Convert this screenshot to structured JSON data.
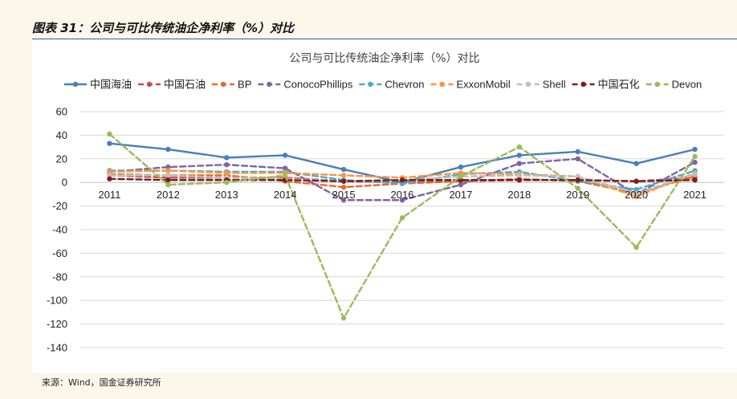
{
  "page": {
    "caption": "图表 31：公司与可比传统油企净利率（%）对比",
    "source": "来源：Wind，国金证券研究所"
  },
  "chart_data": {
    "type": "line",
    "title": "公司与可比传统油企净利率（%）对比",
    "legend_position": "top",
    "grid": "horizontal",
    "x": [
      "2011",
      "2012",
      "2013",
      "2014",
      "2015",
      "2016",
      "2017",
      "2018",
      "2019",
      "2020",
      "2021"
    ],
    "ylim": [
      -140,
      60
    ],
    "yticks": [
      60,
      40,
      20,
      0,
      -20,
      -40,
      -60,
      -80,
      -100,
      -120,
      -140
    ],
    "xlabel": "",
    "ylabel": "",
    "series": [
      {
        "name": "中国海油",
        "color": "#4a7ebb",
        "style": "solid",
        "values": [
          33,
          28,
          21,
          23,
          11,
          0,
          13,
          23,
          26,
          16,
          28
        ]
      },
      {
        "name": "中国石油",
        "color": "#c0504d",
        "style": "dashed",
        "values": [
          6,
          4,
          4,
          4,
          1,
          0,
          1,
          2,
          2,
          1,
          4
        ]
      },
      {
        "name": "BP",
        "color": "#e46c2a",
        "style": "dashed",
        "values": [
          7,
          6,
          6,
          1,
          -4,
          -1,
          1,
          3,
          1,
          -9,
          5
        ]
      },
      {
        "name": "ConocoPhillips",
        "color": "#7f62a6",
        "style": "dashed",
        "values": [
          9,
          13,
          15,
          12,
          -15,
          -15,
          -2,
          16,
          20,
          -10,
          17
        ]
      },
      {
        "name": "Chevron",
        "color": "#4bacc6",
        "style": "dashed",
        "values": [
          10,
          10,
          9,
          9,
          2,
          -1,
          7,
          9,
          1,
          -6,
          10
        ]
      },
      {
        "name": "ExxonMobil",
        "color": "#f79646",
        "style": "dashed",
        "values": [
          9,
          10,
          8,
          8,
          6,
          4,
          8,
          7,
          5,
          -12,
          8
        ]
      },
      {
        "name": "Shell",
        "color": "#bfbfbf",
        "style": "dashed",
        "values": [
          6,
          6,
          4,
          3,
          1,
          2,
          5,
          6,
          5,
          -9,
          7
        ]
      },
      {
        "name": "中国石化",
        "color": "#7a1f1f",
        "style": "dashed",
        "values": [
          3,
          2,
          2,
          2,
          1,
          2,
          2,
          2,
          2,
          1,
          2
        ]
      },
      {
        "name": "Devon",
        "color": "#9bbb59",
        "style": "dashed",
        "values": [
          41,
          -2,
          0,
          6,
          -115,
          -30,
          5,
          30,
          -5,
          -55,
          22
        ]
      }
    ]
  }
}
